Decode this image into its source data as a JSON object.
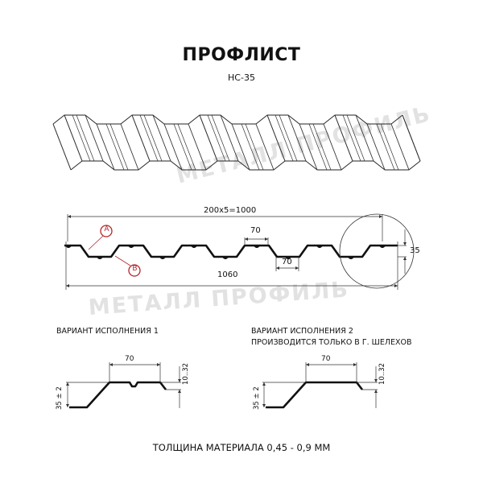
{
  "header": {
    "title": "ПРОФЛИСТ",
    "model": "НС-35"
  },
  "watermark": "МЕТАЛЛ ПРОФИЛЬ",
  "main_profile": {
    "pitch_label": "200x5=1000",
    "width_label": "1060",
    "top_width_label": "70",
    "bottom_width_label": "70",
    "height_label": "35",
    "marker_a": "A",
    "marker_b": "B",
    "marker_color": "#b3262a"
  },
  "variants": [
    {
      "title": "ВАРИАНТ ИСПОЛНЕНИЯ 1",
      "note": "",
      "width_label": "70",
      "flange_label": "10..32",
      "height_label": "35 ± 2"
    },
    {
      "title": "ВАРИАНТ ИСПОЛНЕНИЯ 2",
      "note": "ПРОИЗВОДИТСЯ ТОЛЬКО В Г. ШЕЛЕХОВ",
      "width_label": "70",
      "flange_label": "10..32",
      "height_label": "35 ± 2"
    }
  ],
  "footer": "ТОЛЩИНА МАТЕРИАЛА 0,45 - 0,9 ММ"
}
